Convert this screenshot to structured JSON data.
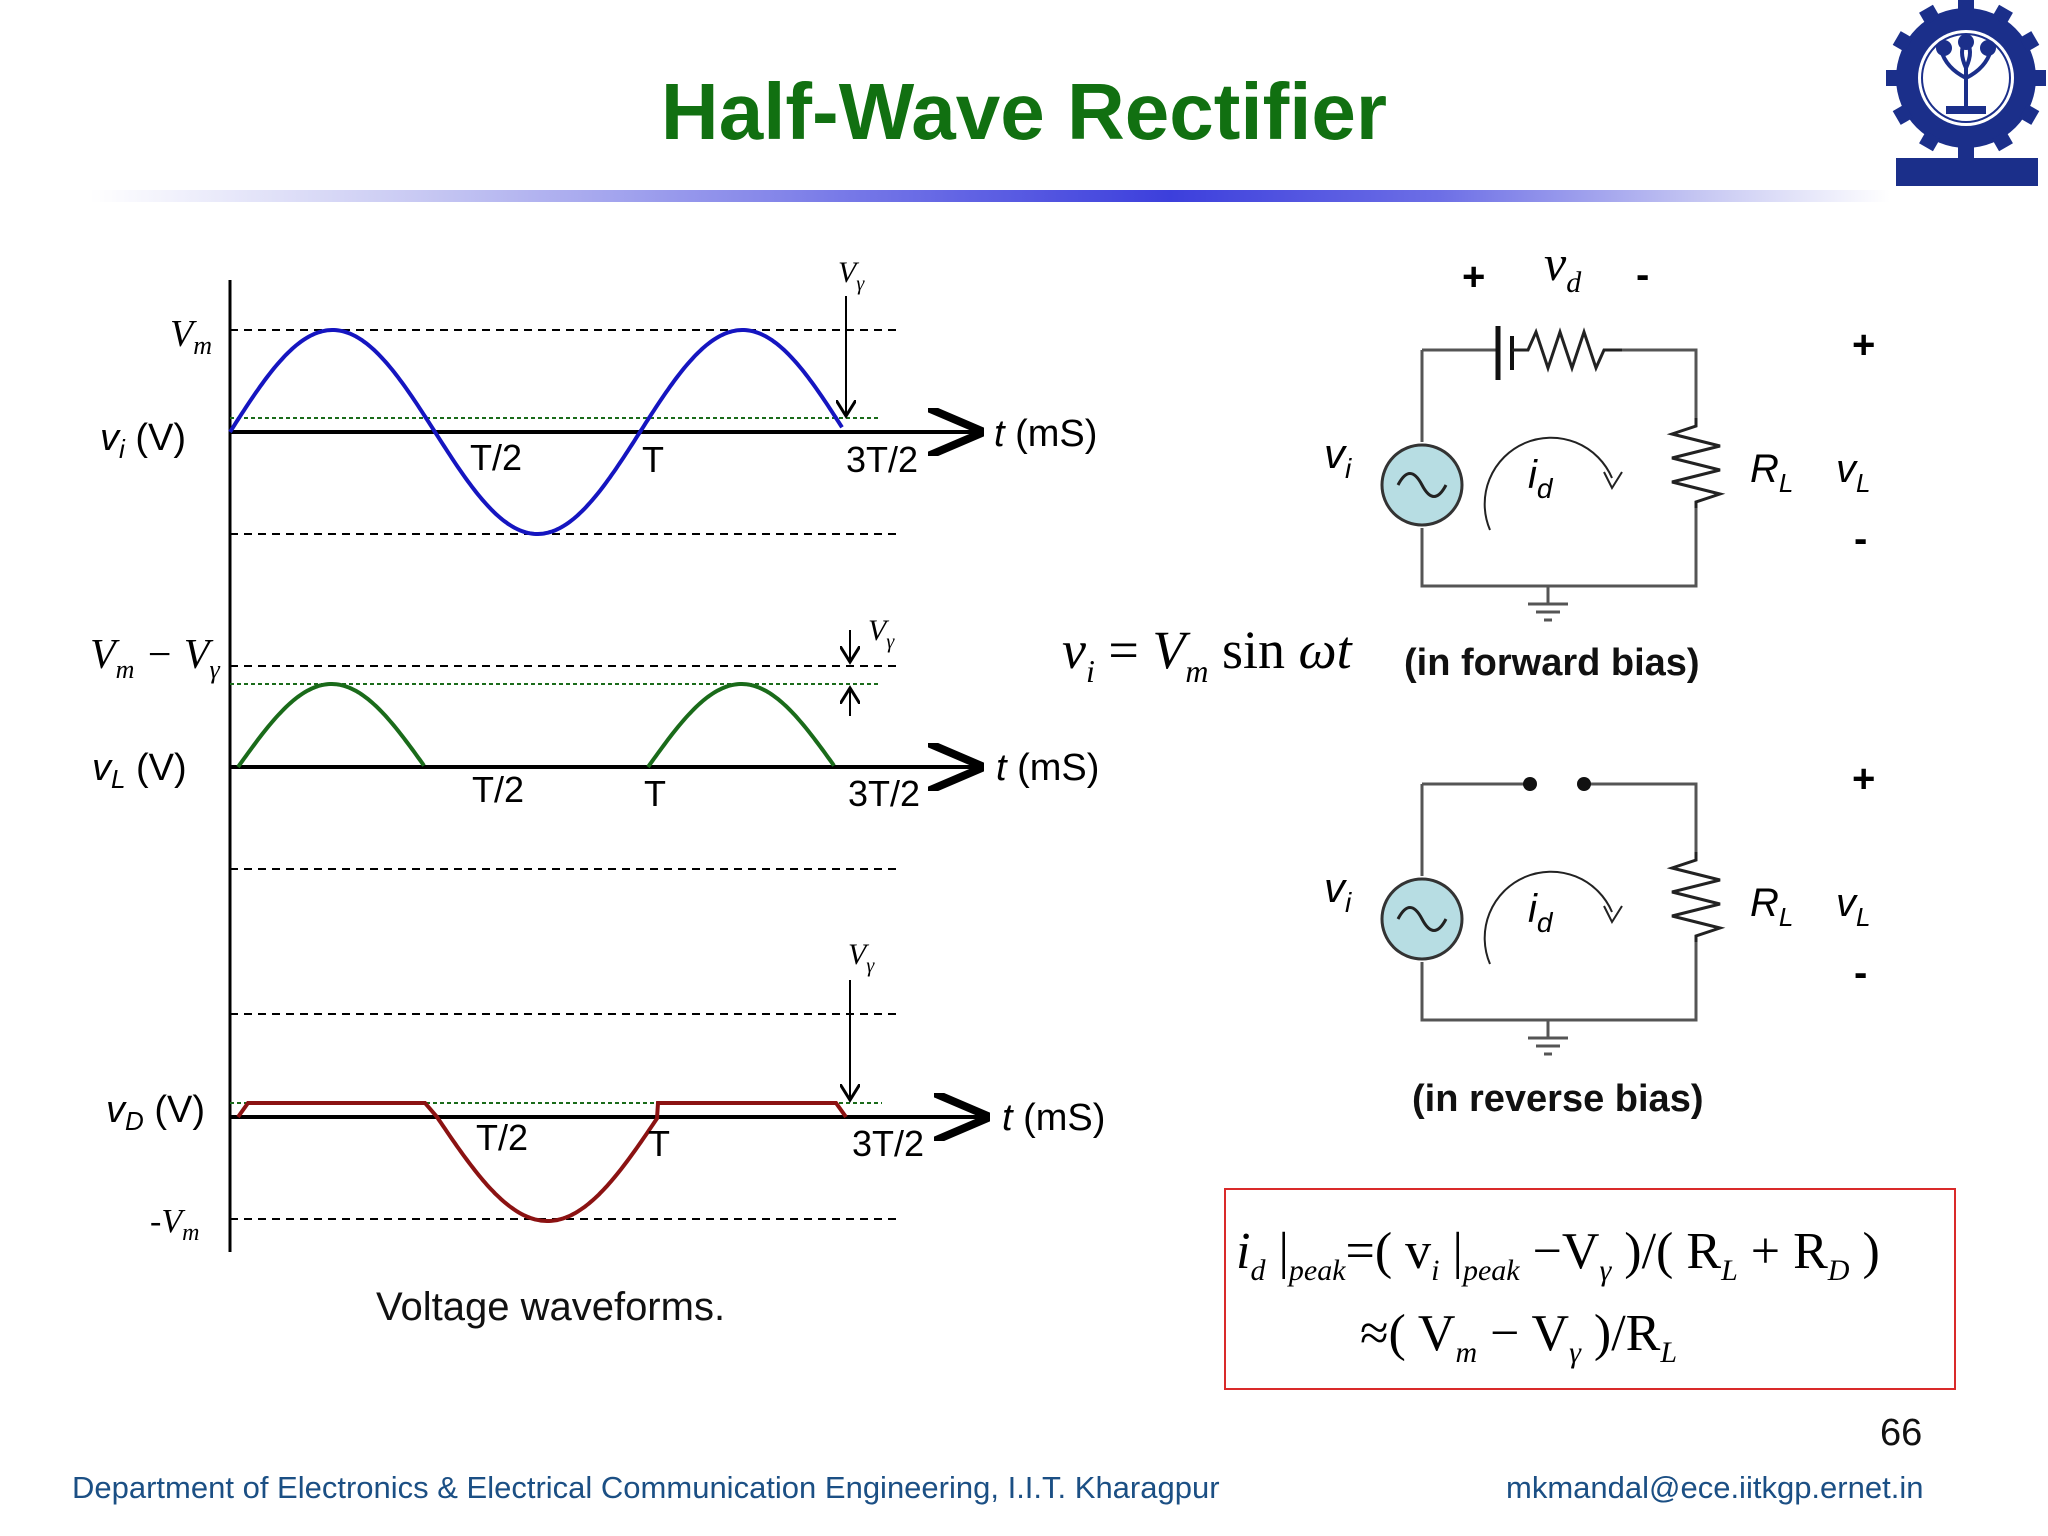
{
  "title": "Half-Wave Rectifier",
  "footer": {
    "department": "Department of Electronics & Electrical Communication Engineering, I.I.T. Kharagpur",
    "email": "mkmandal@ece.iitkgp.ernet.in"
  },
  "page_number": "66",
  "waveforms": {
    "caption": "Voltage waveforms.",
    "vi_label": "(V)",
    "vl_label": "(V)",
    "vd_label": "(V)",
    "time_axis_label": "(mS)",
    "t_half": "T/2",
    "t_full": "T",
    "t_three_half": "3T/2",
    "vm": "V",
    "vgamma": "V",
    "neg_vm": "-V"
  },
  "circuit": {
    "equation_lhs": "v",
    "equation_rhs": "V",
    "equation_func": "sin",
    "equation_arg": "ωt",
    "forward_caption": "(in forward bias)",
    "reverse_caption": "(in reverse bias)",
    "plus": "+",
    "minus": "-",
    "vd": "v",
    "vi": "v",
    "id": "i",
    "rl": "R",
    "vl": "v"
  },
  "formula": {
    "line1": "i_d |peak = ( v_i |peak − V_γ ) / ( R_L + R_D )",
    "line2": "≈ ( V_m − V_γ ) / R_L"
  },
  "colors": {
    "title": "#117011",
    "input_wave": "#1515c0",
    "output_wave": "#1a6b1a",
    "diode_wave": "#8b1212",
    "source_fill": "#b7dde3",
    "footer": "#1b4f84",
    "formula_border": "#d92a2a"
  },
  "logo": {
    "name": "IIT Kharagpur seal",
    "text": "INDIAN INSTITUTE OF TECHNOLOGY KHARAGPUR",
    "year": "1951",
    "motto": "योगः कर्मसु कौशलम्"
  }
}
